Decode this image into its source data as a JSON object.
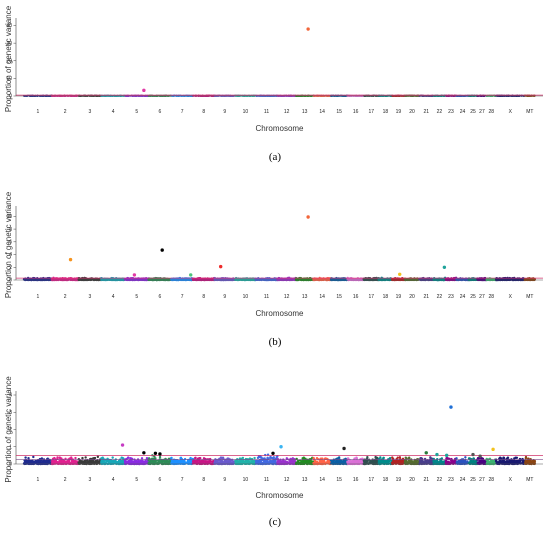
{
  "chart_data": [
    {
      "type": "scatter",
      "panel": "(a)",
      "xlabel": "Chromosome",
      "ylabel": "Proportion of genetic variance",
      "ylim": [
        0,
        42
      ],
      "yticks": [
        0,
        10,
        20,
        30,
        40
      ],
      "threshold": 0.5,
      "categories": [
        "1",
        "2",
        "3",
        "4",
        "5",
        "6",
        "7",
        "8",
        "9",
        "10",
        "11",
        "12",
        "13",
        "14",
        "15",
        "16",
        "17",
        "18",
        "19",
        "20",
        "21",
        "22",
        "23",
        "24",
        "25",
        "27",
        "28",
        "X",
        "MT"
      ],
      "points": [
        {
          "chr": "5",
          "pos": 0.8,
          "y": 3.2,
          "color": "#e23aa6"
        },
        {
          "chr": "13",
          "pos": 0.7,
          "y": 38.0,
          "color": "#f2663a"
        }
      ]
    },
    {
      "type": "scatter",
      "panel": "(b)",
      "xlabel": "Chromosome",
      "ylabel": "Proportion of genetic variance",
      "ylim": [
        0,
        11
      ],
      "yticks": [
        0,
        2,
        4,
        6,
        8,
        10
      ],
      "threshold": 0.3,
      "categories": [
        "1",
        "2",
        "3",
        "4",
        "5",
        "6",
        "7",
        "8",
        "9",
        "10",
        "11",
        "12",
        "13",
        "14",
        "15",
        "16",
        "17",
        "18",
        "19",
        "20",
        "21",
        "22",
        "23",
        "24",
        "25",
        "27",
        "28",
        "X",
        "MT"
      ],
      "points": [
        {
          "chr": "2",
          "pos": 0.7,
          "y": 3.2,
          "color": "#f5931e"
        },
        {
          "chr": "5",
          "pos": 0.4,
          "y": 0.8,
          "color": "#e23aa6"
        },
        {
          "chr": "6",
          "pos": 0.6,
          "y": 4.7,
          "color": "#000000"
        },
        {
          "chr": "7",
          "pos": 0.9,
          "y": 0.8,
          "color": "#4cc47a"
        },
        {
          "chr": "9",
          "pos": 0.3,
          "y": 2.1,
          "color": "#ee2c2c"
        },
        {
          "chr": "13",
          "pos": 0.7,
          "y": 9.9,
          "color": "#f2663a"
        },
        {
          "chr": "19",
          "pos": 0.6,
          "y": 0.9,
          "color": "#f2c21e"
        },
        {
          "chr": "22",
          "pos": 0.9,
          "y": 2.0,
          "color": "#1fa39a"
        }
      ]
    },
    {
      "type": "scatter",
      "panel": "(c)",
      "xlabel": "Chromosome",
      "ylabel": "Proportion of genetic variance",
      "ylim": [
        0,
        4
      ],
      "yticks": [
        0,
        1,
        2,
        3,
        4
      ],
      "threshold": 0.5,
      "threshold2": 0.25,
      "categories": [
        "1",
        "2",
        "3",
        "4",
        "5",
        "6",
        "7",
        "8",
        "9",
        "10",
        "11",
        "12",
        "13",
        "14",
        "15",
        "16",
        "17",
        "18",
        "19",
        "20",
        "21",
        "22",
        "23",
        "24",
        "25",
        "27",
        "28",
        "X",
        "MT"
      ],
      "points": [
        {
          "chr": "4",
          "pos": 0.9,
          "y": 1.1,
          "color": "#c63cc4"
        },
        {
          "chr": "5",
          "pos": 0.8,
          "y": 0.65,
          "color": "#000000"
        },
        {
          "chr": "6",
          "pos": 0.3,
          "y": 0.62,
          "color": "#000000"
        },
        {
          "chr": "6",
          "pos": 0.5,
          "y": 0.58,
          "color": "#000000"
        },
        {
          "chr": "11",
          "pos": 0.8,
          "y": 0.62,
          "color": "#000000"
        },
        {
          "chr": "12",
          "pos": 0.2,
          "y": 1.0,
          "color": "#3ab4f2"
        },
        {
          "chr": "15",
          "pos": 0.8,
          "y": 0.9,
          "color": "#222222"
        },
        {
          "chr": "21",
          "pos": 0.5,
          "y": 0.65,
          "color": "#2a7a3a"
        },
        {
          "chr": "22",
          "pos": 0.3,
          "y": 0.55,
          "color": "#1fa39a"
        },
        {
          "chr": "23",
          "pos": 0.1,
          "y": 0.5,
          "color": "#1fa39a"
        },
        {
          "chr": "23",
          "pos": 0.5,
          "y": 3.3,
          "color": "#1f6fd6"
        },
        {
          "chr": "25",
          "pos": 0.5,
          "y": 0.55,
          "color": "#555555"
        },
        {
          "chr": "27",
          "pos": 0.3,
          "y": 0.45,
          "color": "#555555"
        },
        {
          "chr": "28",
          "pos": 0.7,
          "y": 0.85,
          "color": "#f2c21e"
        }
      ]
    }
  ]
}
